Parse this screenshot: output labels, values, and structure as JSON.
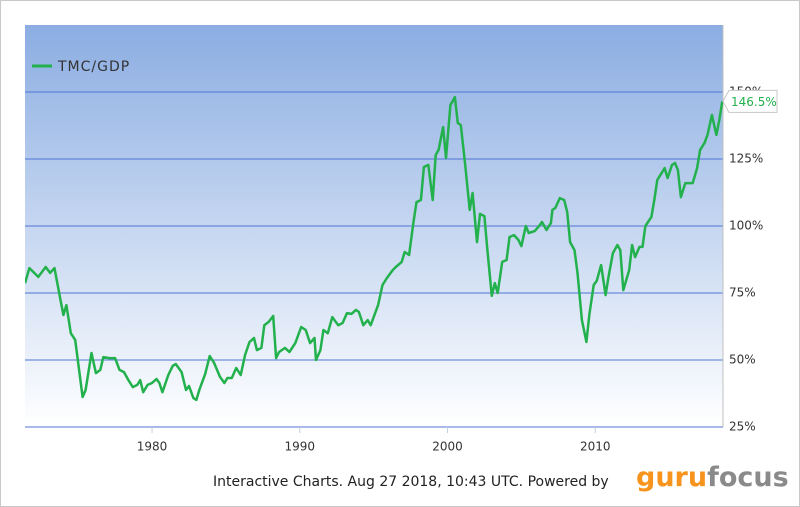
{
  "chart_data": {
    "type": "line",
    "legend": "top-left",
    "grid": true,
    "series": [
      {
        "name": "TMC/GDP",
        "color": "#22b14c",
        "x": [
          1971.4,
          1971.7,
          1972.3,
          1972.8,
          1973.1,
          1973.4,
          1973.8,
          1974.0,
          1974.2,
          1974.5,
          1974.8,
          1975.3,
          1975.5,
          1975.9,
          1976.2,
          1976.5,
          1976.7,
          1977.1,
          1977.5,
          1977.8,
          1978.1,
          1978.4,
          1978.7,
          1979.0,
          1979.2,
          1979.4,
          1979.7,
          1980.0,
          1980.3,
          1980.5,
          1980.7,
          1981.1,
          1981.4,
          1981.6,
          1982.0,
          1982.3,
          1982.5,
          1982.8,
          1983.0,
          1983.2,
          1983.6,
          1983.9,
          1984.2,
          1984.6,
          1984.9,
          1985.1,
          1985.4,
          1985.7,
          1986.0,
          1986.3,
          1986.6,
          1986.9,
          1987.1,
          1987.4,
          1987.6,
          1987.9,
          1988.2,
          1988.4,
          1988.6,
          1989.0,
          1989.3,
          1989.7,
          1990.1,
          1990.4,
          1990.7,
          1991.0,
          1991.1,
          1991.4,
          1991.6,
          1991.9,
          1992.2,
          1992.6,
          1992.9,
          1993.2,
          1993.5,
          1993.8,
          1994.0,
          1994.3,
          1994.6,
          1994.8,
          1995.3,
          1995.6,
          1995.9,
          1996.3,
          1996.5,
          1996.9,
          1997.1,
          1997.4,
          1997.7,
          1997.9,
          1998.2,
          1998.4,
          1998.7,
          1999.0,
          1999.2,
          1999.4,
          1999.7,
          1999.9,
          2000.2,
          2000.5,
          2000.7,
          2000.9,
          2001.2,
          2001.5,
          2001.7,
          2002.0,
          2002.2,
          2002.5,
          2002.7,
          2003.0,
          2003.2,
          2003.4,
          2003.7,
          2004.0,
          2004.2,
          2004.5,
          2004.8,
          2005.0,
          2005.3,
          2005.5,
          2005.9,
          2006.2,
          2006.4,
          2006.7,
          2007.0,
          2007.1,
          2007.3,
          2007.6,
          2007.9,
          2008.1,
          2008.3,
          2008.6,
          2008.8,
          2009.1,
          2009.4,
          2009.6,
          2009.9,
          2010.1,
          2010.4,
          2010.7,
          2010.9,
          2011.2,
          2011.5,
          2011.7,
          2011.9,
          2012.3,
          2012.5,
          2012.7,
          2013.0,
          2013.2,
          2013.4,
          2013.8,
          2014.0,
          2014.2,
          2014.5,
          2014.7,
          2014.9,
          2015.2,
          2015.4,
          2015.6,
          2015.8,
          2016.1,
          2016.3,
          2016.6,
          2016.9,
          2017.1,
          2017.4,
          2017.6,
          2017.9,
          2018.2,
          2018.4,
          2018.6
        ],
        "values": [
          78.7,
          84.3,
          81,
          84.7,
          82.5,
          84.3,
          72.4,
          66.8,
          70.5,
          60,
          57.5,
          36.2,
          38.8,
          52.6,
          45.1,
          46.3,
          51.1,
          50.7,
          50.7,
          46.3,
          45.5,
          42.5,
          39.9,
          40.7,
          42.5,
          38,
          40.7,
          41.4,
          42.9,
          41.4,
          38,
          44.4,
          47.8,
          48.5,
          45.5,
          38.8,
          40.3,
          35.8,
          35.1,
          38.8,
          44.8,
          51.5,
          48.9,
          43.7,
          41.4,
          43.3,
          43.3,
          47,
          44.4,
          51.9,
          56.7,
          58.2,
          53.7,
          54.5,
          63,
          64.2,
          66.4,
          50.7,
          53,
          54.5,
          53,
          56.3,
          62.3,
          61.2,
          56.3,
          58.2,
          50,
          53.7,
          61.2,
          60,
          66,
          63,
          63.8,
          67.5,
          67.2,
          68.7,
          67.9,
          63,
          64.9,
          63,
          70.5,
          78,
          80.6,
          83.6,
          84.7,
          86.6,
          90.3,
          89.2,
          101.5,
          108.9,
          109.7,
          122,
          122.8,
          109.7,
          126.5,
          128.4,
          136.9,
          125.4,
          145.1,
          148.1,
          138.4,
          137.7,
          122.8,
          106,
          112.3,
          94,
          104.5,
          103.7,
          91,
          73.9,
          78.7,
          75,
          86.6,
          87.3,
          95.9,
          96.6,
          94.8,
          92.5,
          100,
          97.4,
          98.1,
          100,
          101.5,
          98.5,
          101.1,
          106,
          106.7,
          110.4,
          109.7,
          105.2,
          94,
          91,
          82.5,
          64.9,
          56.7,
          66.8,
          78,
          79.5,
          85.4,
          74.2,
          81,
          89.9,
          92.9,
          91,
          76.1,
          83.6,
          92.9,
          88.4,
          92.2,
          92.2,
          100,
          103.4,
          109.7,
          117.2,
          119.8,
          121.6,
          117.9,
          122.8,
          123.5,
          120.9,
          110.8,
          116,
          116,
          116,
          121.6,
          128.4,
          131,
          134,
          141.4,
          134,
          139.5,
          146.5
        ]
      }
    ],
    "flag": {
      "value": 146.5,
      "label": "146.5%"
    },
    "xlim": [
      1971.4,
      2018.65
    ],
    "xticks": [
      1980,
      1990,
      2000,
      2010
    ],
    "ylim": [
      25,
      175
    ],
    "yticks": [
      {
        "value": 25,
        "label": "25%"
      },
      {
        "value": 50,
        "label": "50%"
      },
      {
        "value": 75,
        "label": "75%"
      },
      {
        "value": 100,
        "label": "100%"
      },
      {
        "value": 125,
        "label": "125%"
      },
      {
        "value": 150,
        "label": "150%"
      }
    ],
    "credits": "Interactive Charts. Aug 27 2018, 10:43 UTC. Powered by",
    "brand": [
      "guru",
      "focus"
    ]
  }
}
